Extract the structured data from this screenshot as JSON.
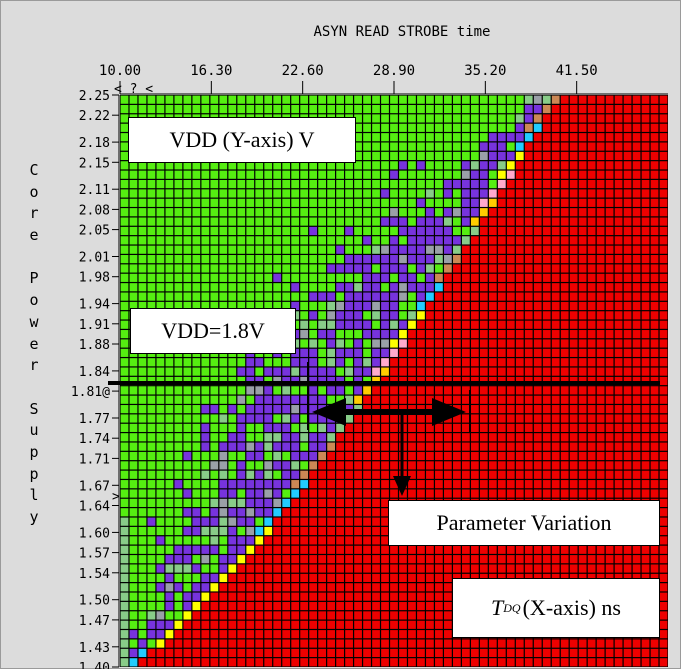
{
  "chart_data": {
    "type": "heatmap",
    "title": "ASYN READ STROBE time",
    "xlabel": "",
    "ylabel": "Core Power Supply",
    "x_ticks": [
      "10.00",
      "16.30",
      "22.60",
      "28.90",
      "35.20",
      "41.50"
    ],
    "y_ticks": [
      "2.25",
      "2.22",
      "2.18",
      "2.15",
      "2.11",
      "2.08",
      "2.05",
      "2.01",
      "1.98",
      "1.94",
      "1.91",
      "1.88",
      "1.84",
      "1.81",
      "1.77",
      "1.74",
      "1.71",
      "1.67",
      "1.64",
      "1.60",
      "1.57",
      "1.54",
      "1.50",
      "1.47",
      "1.43",
      "1.40"
    ],
    "y_marker_tick": "1.81",
    "y_marker_symbol": "@",
    "top_marker_text": "< ? <",
    "side_marker_text": ">",
    "x_range": [
      10.0,
      47.8
    ],
    "y_range": [
      1.4,
      2.25
    ],
    "cell_colors": {
      "pass": "#55ee11",
      "marginal": "#7733dd",
      "fail": "#ee0000",
      "border": "#9aa0a8",
      "grid": "#000000"
    },
    "boundary_colors": [
      "#cc8855",
      "#22ccff",
      "#ffff00",
      "#ffaacc",
      "#ffcc00",
      "#88cc88"
    ],
    "description": "",
    "reference_line_vdd": 1.81
  },
  "annotations": {
    "vdd_axis": "VDD (Y-axis) V",
    "vdd_level": "VDD=1.8V",
    "variation": "Parameter Variation",
    "tdq_symbol": "T",
    "tdq_subscript": "DQ",
    "tdq_rest": "(X-axis) ns"
  }
}
